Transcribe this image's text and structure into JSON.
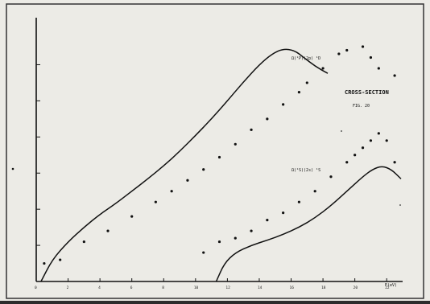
{
  "chart_data": {
    "type": "scatter",
    "title": "CROSS-SECTION",
    "subtitle": "FIG. 20",
    "xlabel": "E(eV)",
    "ylabel": "",
    "xlim": [
      0,
      23
    ],
    "ylim": [
      0,
      3.25
    ],
    "grid": false,
    "legend": "none",
    "x_ticks": [
      "0",
      "2",
      "4",
      "6",
      "8",
      "10",
      "12",
      "14",
      "16",
      "18",
      "20",
      "22"
    ],
    "y_ticks": [
      "",
      "",
      "",
      "",
      "",
      ""
    ],
    "series": [
      {
        "name": "Ω(¹P)(2p) ¹D",
        "points": [
          [
            0.5,
            0.25
          ],
          [
            1.5,
            0.3
          ],
          [
            3,
            0.55
          ],
          [
            4.5,
            0.7
          ],
          [
            6,
            0.9
          ],
          [
            7.5,
            1.1
          ],
          [
            8.5,
            1.25
          ],
          [
            9.5,
            1.4
          ],
          [
            10.5,
            1.55
          ],
          [
            11.5,
            1.72
          ],
          [
            12.5,
            1.9
          ],
          [
            13.5,
            2.1
          ],
          [
            14.5,
            2.25
          ],
          [
            15.5,
            2.45
          ],
          [
            16.5,
            2.62
          ],
          [
            17,
            2.75
          ],
          [
            18,
            2.95
          ],
          [
            19,
            3.15
          ],
          [
            19.5,
            3.2
          ],
          [
            20.5,
            3.25
          ],
          [
            21,
            3.1
          ],
          [
            21.5,
            2.95
          ],
          [
            22.5,
            2.85
          ]
        ],
        "curve": [
          [
            0.3,
            0.0
          ],
          [
            1,
            0.3
          ],
          [
            2,
            0.55
          ],
          [
            3,
            0.75
          ],
          [
            4,
            0.93
          ],
          [
            5,
            1.08
          ],
          [
            6,
            1.25
          ],
          [
            7,
            1.42
          ],
          [
            8,
            1.6
          ],
          [
            9,
            1.8
          ],
          [
            10,
            2.02
          ],
          [
            11,
            2.25
          ],
          [
            12,
            2.5
          ],
          [
            13,
            2.76
          ],
          [
            14,
            3.0
          ],
          [
            14.8,
            3.15
          ],
          [
            15.5,
            3.22
          ],
          [
            16.2,
            3.2
          ],
          [
            16.8,
            3.1
          ],
          [
            17.5,
            2.98
          ],
          [
            18.3,
            2.88
          ]
        ],
        "label": "Ω(¹P)(2p) ¹D",
        "color": "#111111"
      },
      {
        "name": "Ω(¹S)(2s) ¹S",
        "points": [
          [
            10.5,
            0.4
          ],
          [
            11.5,
            0.55
          ],
          [
            12.5,
            0.6
          ],
          [
            13.5,
            0.7
          ],
          [
            14.5,
            0.85
          ],
          [
            15.5,
            0.95
          ],
          [
            16.5,
            1.1
          ],
          [
            17.5,
            1.25
          ],
          [
            18.5,
            1.45
          ],
          [
            19.5,
            1.65
          ],
          [
            20,
            1.75
          ],
          [
            20.5,
            1.85
          ],
          [
            21,
            1.95
          ],
          [
            21.5,
            2.05
          ],
          [
            22,
            1.95
          ],
          [
            22.5,
            1.65
          ]
        ],
        "curve": [
          [
            5.8,
            0.0
          ],
          [
            6.3,
            0.25
          ],
          [
            7,
            0.4
          ],
          [
            8,
            0.5
          ],
          [
            9,
            0.57
          ],
          [
            10,
            0.65
          ],
          [
            11,
            0.75
          ],
          [
            12,
            0.88
          ],
          [
            13,
            1.05
          ],
          [
            14,
            1.25
          ],
          [
            15,
            1.45
          ],
          [
            15.6,
            1.55
          ],
          [
            16.2,
            1.6
          ],
          [
            16.8,
            1.55
          ],
          [
            17.4,
            1.42
          ]
        ],
        "label": "Ω(¹S)(2s) ¹S",
        "color": "#111111"
      }
    ]
  }
}
